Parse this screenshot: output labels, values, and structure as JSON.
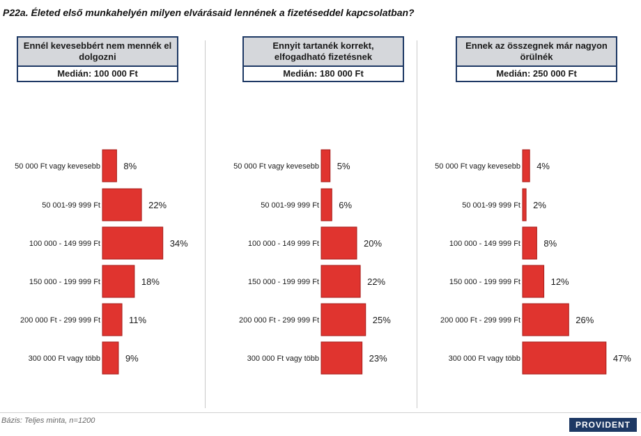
{
  "header": {
    "title": "P22a.  Életed első munkahelyén milyen elvárásaid lennének a fizetéseddel kapcsolatban?"
  },
  "colors": {
    "bar": "#e0342f",
    "bar_stroke": "#a51d1a",
    "box_border": "#1d3864",
    "box_head_bg": "#d5d7db"
  },
  "chart_data": [
    {
      "type": "bar",
      "orientation": "horizontal",
      "title": "Ennél kevesebbért nem mennék el dolgozni",
      "median": "Medián: 100 000 Ft",
      "categories": [
        "50 000 Ft vagy kevesebb",
        "50 001-99 999 Ft",
        "100 000 - 149 999 Ft",
        "150 000 - 199 999 Ft",
        "200 000 Ft - 299 999 Ft",
        "300 000 Ft vagy több"
      ],
      "value_labels": [
        "8%",
        "22%",
        "34%",
        "18%",
        "11%",
        "9%"
      ],
      "values": [
        8,
        22,
        34,
        18,
        11,
        9
      ],
      "xlim": [
        0,
        50
      ]
    },
    {
      "type": "bar",
      "orientation": "horizontal",
      "title": "Ennyit tartanék korrekt, elfogadható fizetésnek",
      "median": "Medián: 180 000 Ft",
      "categories": [
        "50 000 Ft vagy kevesebb",
        "50 001-99 999 Ft",
        "100 000 - 149 999 Ft",
        "150 000 - 199 999 Ft",
        "200 000 Ft - 299 999 Ft",
        "300 000 Ft vagy több"
      ],
      "value_labels": [
        "5%",
        "6%",
        "20%",
        "22%",
        "25%",
        "23%"
      ],
      "values": [
        5,
        6,
        20,
        22,
        25,
        23
      ],
      "xlim": [
        0,
        50
      ]
    },
    {
      "type": "bar",
      "orientation": "horizontal",
      "title": "Ennek az összegnek már nagyon örülnék",
      "median": "Medián: 250 000 Ft",
      "categories": [
        "50 000 Ft vagy kevesebb",
        "50 001-99 999 Ft",
        "100 000 - 149 999 Ft",
        "150 000 - 199 999 Ft",
        "200 000 Ft - 299 999 Ft",
        "300 000 Ft vagy több"
      ],
      "value_labels": [
        "4%",
        "2%",
        "8%",
        "12%",
        "26%",
        "47%"
      ],
      "values": [
        4,
        2,
        8,
        12,
        26,
        47
      ],
      "xlim": [
        0,
        50
      ]
    }
  ],
  "footer": {
    "base": "Bázis: Teljes minta, n=1200",
    "logo": "PROVIDENT"
  }
}
